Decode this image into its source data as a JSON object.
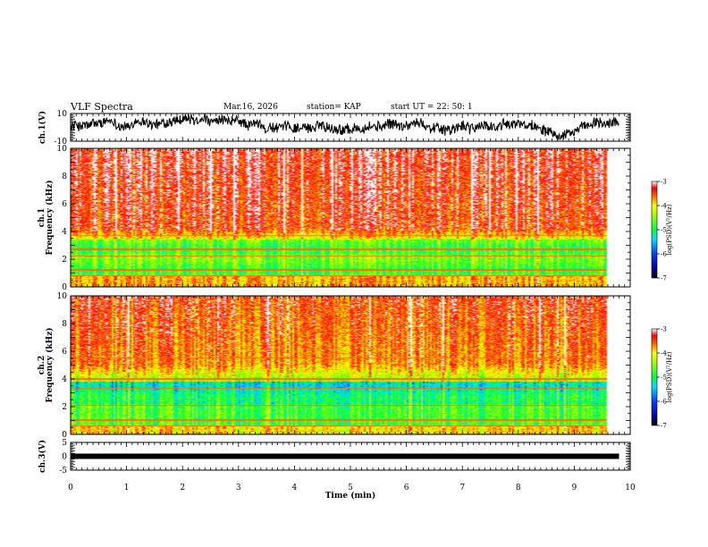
{
  "header": {
    "title": "VLF Spectra",
    "date": "Mar.16, 2026",
    "station": "station= KAP",
    "start_ut": "start  UT  =   22: 50: 1"
  },
  "chart_data": {
    "type": "heatmap",
    "title": "VLF Spectra",
    "xlabel": "Time  (min)",
    "xlim": [
      0,
      10
    ],
    "x_ticks": [
      "0",
      "1",
      "2",
      "3",
      "4",
      "5",
      "6",
      "7",
      "8",
      "9",
      "10"
    ],
    "panels": [
      {
        "name": "ch1-waveform",
        "type": "line",
        "ylabel": "ch.1(V)",
        "ylim": [
          -10,
          10
        ],
        "y_ticks": [
          "10",
          "-10"
        ],
        "data_end_min": 9.8,
        "description_mean_level_v": 1.0
      },
      {
        "name": "ch1-spectrogram",
        "type": "heatmap",
        "ylabel_top": "ch.1",
        "ylabel": "Frequency  (kHz)",
        "ylim": [
          0,
          10
        ],
        "y_ticks": [
          "0",
          "2",
          "4",
          "6",
          "8",
          "10"
        ],
        "data_end_min": 9.8,
        "colorbar": {
          "label": "log(PSD)(V²/Hz)",
          "range": [
            -7,
            -3
          ],
          "ticks": [
            "-3",
            "-4",
            "-5",
            "-6",
            "-7"
          ]
        }
      },
      {
        "name": "ch2-spectrogram",
        "type": "heatmap",
        "ylabel_top": "ch.2",
        "ylabel": "Frequency  (kHz)",
        "ylim": [
          0,
          10
        ],
        "y_ticks": [
          "0",
          "2",
          "4",
          "6",
          "8",
          "10"
        ],
        "data_end_min": 9.8,
        "colorbar": {
          "label": "log(PSD)(V²/Hz)",
          "range": [
            -7,
            -3
          ],
          "ticks": [
            "-3",
            "-4",
            "-5",
            "-6",
            "-7"
          ]
        }
      },
      {
        "name": "ch3-waveform",
        "type": "line",
        "ylabel": "ch.3(V)",
        "ylim": [
          -5,
          5
        ],
        "y_ticks": [
          "5",
          "0",
          "-5"
        ],
        "data_end_min": 9.8,
        "signal_level_v": 0
      }
    ]
  }
}
